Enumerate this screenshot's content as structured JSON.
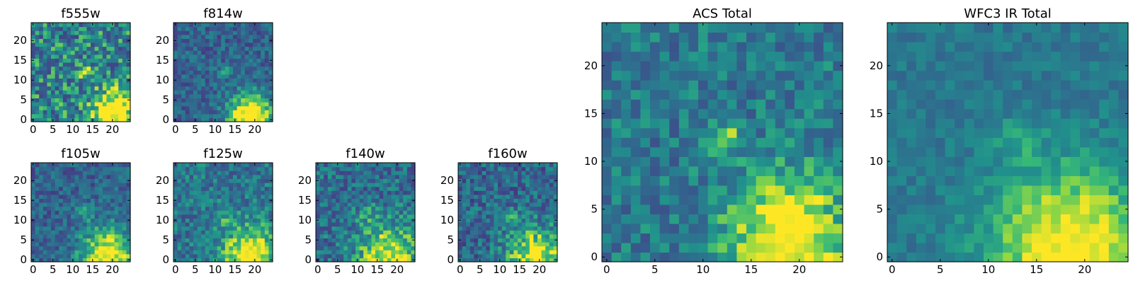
{
  "colormap": "viridis",
  "colors": {
    "frame": "#000000",
    "background": "#ffffff"
  },
  "chart_data": [
    {
      "name": "f555w",
      "type": "heatmap",
      "title": "f555w",
      "xlim": [
        0,
        24
      ],
      "ylim": [
        0,
        24
      ],
      "xticks": [
        0,
        5,
        10,
        15,
        20
      ],
      "yticks": [
        0,
        5,
        10,
        15,
        20
      ],
      "seed": 11,
      "noise": 0.3,
      "base": 0.55,
      "blob": [
        13,
        12.5,
        1.2,
        0.38
      ],
      "corner": [
        20,
        2,
        3.5,
        0.7
      ],
      "min": 0.0,
      "max": 1.0
    },
    {
      "name": "f814w",
      "type": "heatmap",
      "title": "f814w",
      "xlim": [
        0,
        24
      ],
      "ylim": [
        0,
        24
      ],
      "xticks": [
        0,
        5,
        10,
        15,
        20
      ],
      "yticks": [
        0,
        5,
        10,
        15,
        20
      ],
      "seed": 23,
      "noise": 0.18,
      "base": 0.4,
      "blob": [
        12.5,
        12,
        1.0,
        0.45
      ],
      "corner": [
        19,
        1,
        4.0,
        0.75
      ],
      "min": 0.0,
      "max": 1.0
    },
    {
      "name": "f105w",
      "type": "heatmap",
      "title": "f105w",
      "xlim": [
        0,
        24
      ],
      "ylim": [
        0,
        24
      ],
      "xticks": [
        0,
        5,
        10,
        15,
        20
      ],
      "yticks": [
        0,
        5,
        10,
        15,
        20
      ],
      "seed": 37,
      "noise": 0.18,
      "base": 0.4,
      "blob": [
        13,
        12,
        1.6,
        0.22
      ],
      "corner": [
        19,
        1,
        5.0,
        0.65
      ],
      "min": 0.0,
      "max": 1.0
    },
    {
      "name": "f125w",
      "type": "heatmap",
      "title": "f125w",
      "xlim": [
        0,
        24
      ],
      "ylim": [
        0,
        24
      ],
      "xticks": [
        0,
        5,
        10,
        15,
        20
      ],
      "yticks": [
        0,
        5,
        10,
        15,
        20
      ],
      "seed": 41,
      "noise": 0.2,
      "base": 0.48,
      "blob": [
        13,
        11,
        2.0,
        0.18
      ],
      "corner": [
        19,
        1,
        5.0,
        0.6
      ],
      "min": 0.0,
      "max": 1.0
    },
    {
      "name": "f140w",
      "type": "heatmap",
      "title": "f140w",
      "xlim": [
        0,
        24
      ],
      "ylim": [
        0,
        24
      ],
      "xticks": [
        0,
        5,
        10,
        15,
        20
      ],
      "yticks": [
        0,
        5,
        10,
        15,
        20
      ],
      "seed": 53,
      "noise": 0.22,
      "base": 0.45,
      "blob": [
        13,
        11,
        2.0,
        0.15
      ],
      "corner": [
        18,
        1,
        5.5,
        0.55
      ],
      "min": 0.0,
      "max": 1.0
    },
    {
      "name": "f160w",
      "type": "heatmap",
      "title": "f160w",
      "xlim": [
        0,
        24
      ],
      "ylim": [
        0,
        24
      ],
      "xticks": [
        0,
        5,
        10,
        15,
        20
      ],
      "yticks": [
        0,
        5,
        10,
        15,
        20
      ],
      "seed": 67,
      "noise": 0.22,
      "base": 0.42,
      "blob": [
        13,
        11,
        2.0,
        0.15
      ],
      "corner": [
        19,
        1,
        5.0,
        0.6
      ],
      "min": 0.0,
      "max": 1.0
    },
    {
      "name": "ACS Total",
      "type": "heatmap",
      "title": "ACS Total",
      "xlim": [
        0,
        24
      ],
      "ylim": [
        0,
        24
      ],
      "xticks": [
        0,
        5,
        10,
        15,
        20
      ],
      "yticks": [
        0,
        5,
        10,
        15,
        20
      ],
      "seed": 79,
      "noise": 0.18,
      "base": 0.5,
      "blob": [
        12.5,
        12.5,
        1.1,
        0.42
      ],
      "corner": [
        19,
        2,
        4.5,
        0.6
      ],
      "min": 0.0,
      "max": 1.0
    },
    {
      "name": "WFC3 IR Total",
      "type": "heatmap",
      "title": "WFC3 IR Total",
      "xlim": [
        0,
        24
      ],
      "ylim": [
        0,
        24
      ],
      "xticks": [
        0,
        5,
        10,
        15,
        20
      ],
      "yticks": [
        0,
        5,
        10,
        15,
        20
      ],
      "seed": 97,
      "noise": 0.1,
      "base": 0.5,
      "blob": [
        13,
        12.5,
        1.6,
        0.15
      ],
      "corner": [
        18.5,
        1,
        6.0,
        0.55
      ],
      "min": 0.0,
      "max": 1.0
    }
  ]
}
